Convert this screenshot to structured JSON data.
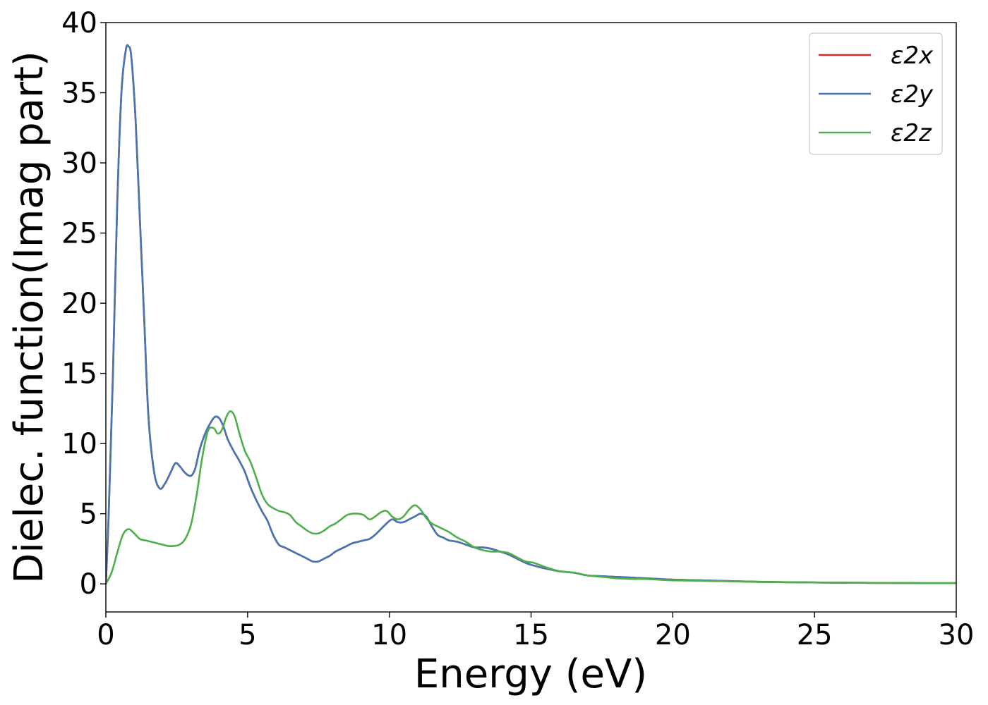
{
  "chart_data": {
    "type": "line",
    "xlabel": "Energy (eV)",
    "ylabel": "Dielec. function(Imag part)",
    "xlim": [
      0,
      30
    ],
    "ylim": [
      -2,
      40
    ],
    "xticks": [
      "0",
      "5",
      "10",
      "15",
      "20",
      "25",
      "30"
    ],
    "yticks": [
      "0",
      "5",
      "10",
      "15",
      "20",
      "25",
      "30",
      "35",
      "40"
    ],
    "grid": false,
    "legend_position": "top-right",
    "series": [
      {
        "name": "ε2x",
        "color": "#d62728",
        "x": [
          0,
          0.1,
          0.25,
          0.4,
          0.55,
          0.7,
          0.8,
          0.9,
          1.05,
          1.2,
          1.35,
          1.5,
          1.7,
          1.9,
          2.1,
          2.3,
          2.45,
          2.6,
          2.8,
          3.0,
          3.15,
          3.3,
          3.5,
          3.7,
          3.85,
          4.0,
          4.15,
          4.3,
          4.5,
          4.7,
          4.9,
          5.1,
          5.3,
          5.5,
          5.7,
          5.9,
          6.1,
          6.3,
          6.5,
          6.7,
          6.9,
          7.1,
          7.3,
          7.5,
          7.7,
          7.9,
          8.1,
          8.3,
          8.5,
          8.7,
          8.9,
          9.1,
          9.3,
          9.5,
          9.7,
          9.9,
          10.1,
          10.3,
          10.5,
          10.7,
          10.9,
          11.1,
          11.3,
          11.5,
          11.7,
          11.9,
          12.1,
          12.4,
          12.7,
          13.0,
          13.3,
          13.6,
          13.9,
          14.2,
          14.5,
          14.8,
          15.1,
          15.5,
          16.0,
          16.5,
          17.0,
          17.5,
          18.0,
          18.5,
          19.0,
          19.5,
          20,
          21,
          22,
          23,
          24,
          25,
          26,
          27,
          28,
          29,
          30
        ],
        "y": [
          0,
          5,
          15,
          27,
          35,
          38,
          38.3,
          37.5,
          33,
          26,
          19,
          12,
          8,
          6.8,
          7.2,
          8.0,
          8.6,
          8.4,
          7.9,
          7.7,
          8.2,
          9.5,
          10.7,
          11.5,
          11.9,
          11.8,
          11.2,
          10.3,
          9.5,
          8.8,
          8.0,
          6.9,
          6.0,
          5.2,
          4.5,
          3.5,
          2.8,
          2.6,
          2.4,
          2.2,
          2.0,
          1.8,
          1.6,
          1.6,
          1.8,
          2.0,
          2.3,
          2.5,
          2.7,
          2.9,
          3.0,
          3.1,
          3.2,
          3.5,
          3.9,
          4.3,
          4.6,
          4.4,
          4.4,
          4.6,
          4.8,
          5.0,
          4.8,
          4.1,
          3.5,
          3.3,
          3.1,
          3.0,
          2.8,
          2.6,
          2.6,
          2.5,
          2.3,
          2.1,
          1.8,
          1.5,
          1.3,
          1.1,
          0.9,
          0.8,
          0.6,
          0.55,
          0.5,
          0.45,
          0.4,
          0.35,
          0.3,
          0.25,
          0.2,
          0.15,
          0.12,
          0.1,
          0.08,
          0.07,
          0.06,
          0.05,
          0.05
        ]
      },
      {
        "name": "ε2y",
        "color": "#4575b4",
        "x": [
          0,
          0.1,
          0.25,
          0.4,
          0.55,
          0.7,
          0.8,
          0.9,
          1.05,
          1.2,
          1.35,
          1.5,
          1.7,
          1.9,
          2.1,
          2.3,
          2.45,
          2.6,
          2.8,
          3.0,
          3.15,
          3.3,
          3.5,
          3.7,
          3.85,
          4.0,
          4.15,
          4.3,
          4.5,
          4.7,
          4.9,
          5.1,
          5.3,
          5.5,
          5.7,
          5.9,
          6.1,
          6.3,
          6.5,
          6.7,
          6.9,
          7.1,
          7.3,
          7.5,
          7.7,
          7.9,
          8.1,
          8.3,
          8.5,
          8.7,
          8.9,
          9.1,
          9.3,
          9.5,
          9.7,
          9.9,
          10.1,
          10.3,
          10.5,
          10.7,
          10.9,
          11.1,
          11.3,
          11.5,
          11.7,
          11.9,
          12.1,
          12.4,
          12.7,
          13.0,
          13.3,
          13.6,
          13.9,
          14.2,
          14.5,
          14.8,
          15.1,
          15.5,
          16.0,
          16.5,
          17.0,
          17.5,
          18.0,
          18.5,
          19.0,
          19.5,
          20,
          21,
          22,
          23,
          24,
          25,
          26,
          27,
          28,
          29,
          30
        ],
        "y": [
          0,
          5,
          15,
          27,
          35,
          38,
          38.3,
          37.5,
          33,
          26,
          19,
          12,
          8,
          6.8,
          7.2,
          8.0,
          8.6,
          8.4,
          7.9,
          7.7,
          8.2,
          9.5,
          10.7,
          11.5,
          11.9,
          11.8,
          11.2,
          10.3,
          9.5,
          8.8,
          8.0,
          6.9,
          6.0,
          5.2,
          4.5,
          3.5,
          2.8,
          2.6,
          2.4,
          2.2,
          2.0,
          1.8,
          1.6,
          1.6,
          1.8,
          2.0,
          2.3,
          2.5,
          2.7,
          2.9,
          3.0,
          3.1,
          3.2,
          3.5,
          3.9,
          4.3,
          4.6,
          4.4,
          4.4,
          4.6,
          4.8,
          5.0,
          4.8,
          4.1,
          3.5,
          3.3,
          3.1,
          3.0,
          2.8,
          2.6,
          2.6,
          2.5,
          2.3,
          2.1,
          1.8,
          1.5,
          1.3,
          1.1,
          0.9,
          0.8,
          0.6,
          0.55,
          0.5,
          0.45,
          0.4,
          0.35,
          0.3,
          0.25,
          0.2,
          0.15,
          0.12,
          0.1,
          0.08,
          0.07,
          0.06,
          0.05,
          0.05
        ]
      },
      {
        "name": "ε2z",
        "color": "#4daf4a",
        "x": [
          0,
          0.2,
          0.4,
          0.6,
          0.8,
          1.0,
          1.2,
          1.4,
          1.6,
          1.8,
          2.0,
          2.2,
          2.4,
          2.6,
          2.8,
          3.0,
          3.2,
          3.4,
          3.6,
          3.8,
          3.95,
          4.1,
          4.25,
          4.4,
          4.55,
          4.7,
          4.9,
          5.1,
          5.3,
          5.5,
          5.7,
          5.9,
          6.1,
          6.3,
          6.5,
          6.7,
          6.9,
          7.1,
          7.3,
          7.5,
          7.7,
          7.9,
          8.1,
          8.3,
          8.5,
          8.7,
          8.9,
          9.1,
          9.3,
          9.5,
          9.7,
          9.9,
          10.1,
          10.3,
          10.5,
          10.7,
          10.9,
          11.1,
          11.3,
          11.5,
          11.7,
          11.9,
          12.1,
          12.4,
          12.7,
          13.0,
          13.3,
          13.6,
          13.9,
          14.2,
          14.5,
          14.8,
          15.1,
          15.5,
          16.0,
          16.5,
          17.0,
          17.5,
          18.0,
          18.5,
          19.0,
          19.5,
          20,
          21,
          22,
          23,
          24,
          25,
          26,
          27,
          28,
          29,
          30
        ],
        "y": [
          0,
          0.8,
          2.2,
          3.5,
          3.9,
          3.6,
          3.2,
          3.1,
          3.0,
          2.9,
          2.8,
          2.7,
          2.7,
          2.8,
          3.2,
          4.2,
          6.3,
          9.0,
          10.9,
          11.1,
          10.7,
          11.0,
          11.9,
          12.3,
          11.9,
          10.8,
          9.5,
          8.7,
          7.6,
          6.4,
          5.7,
          5.4,
          5.2,
          5.1,
          4.9,
          4.4,
          4.1,
          3.8,
          3.6,
          3.6,
          3.8,
          4.1,
          4.3,
          4.6,
          4.9,
          5.0,
          5.0,
          4.9,
          4.6,
          4.8,
          5.1,
          5.2,
          4.8,
          4.6,
          4.8,
          5.3,
          5.6,
          5.3,
          4.7,
          4.3,
          4.1,
          3.9,
          3.7,
          3.3,
          3.0,
          2.6,
          2.4,
          2.3,
          2.3,
          2.2,
          1.9,
          1.6,
          1.5,
          1.2,
          0.9,
          0.8,
          0.6,
          0.5,
          0.4,
          0.35,
          0.35,
          0.3,
          0.25,
          0.22,
          0.18,
          0.14,
          0.12,
          0.1,
          0.08,
          0.07,
          0.06,
          0.05,
          0.05
        ]
      }
    ]
  }
}
